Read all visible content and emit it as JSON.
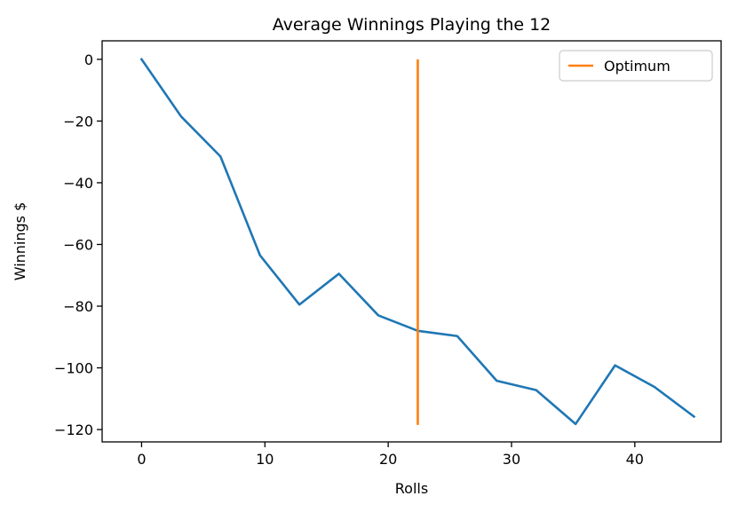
{
  "chart_data": {
    "type": "line",
    "title": "Average Winnings Playing the 12",
    "xlabel": "Rolls",
    "ylabel": "Winnings $",
    "xlim": [
      -3.2,
      47.0
    ],
    "ylim": [
      -124.0,
      6.0
    ],
    "xticks": [
      0,
      10,
      20,
      30,
      40
    ],
    "yticks": [
      0,
      -20,
      -40,
      -60,
      -80,
      -100,
      -120
    ],
    "xtick_labels": [
      "0",
      "10",
      "20",
      "30",
      "40"
    ],
    "ytick_labels": [
      "0",
      "−20",
      "−40",
      "−60",
      "−80",
      "−100",
      "−120"
    ],
    "grid": false,
    "legend_position": "top-right",
    "series": [
      {
        "color": "#1f77b4",
        "x": [
          0,
          3.2,
          6.4,
          9.6,
          12.8,
          16.0,
          19.2,
          22.4,
          25.6,
          28.8,
          32.0,
          35.2,
          38.4,
          41.6,
          44.8
        ],
        "values": [
          0,
          -18.5,
          -31.5,
          -63.5,
          -79.5,
          -69.5,
          -83.0,
          -88.0,
          -89.7,
          -104.2,
          -107.2,
          -118.2,
          -99.2,
          -106.2,
          -115.8
        ]
      }
    ],
    "vertical_lines": [
      {
        "name": "Optimum",
        "color": "#ff7f0e",
        "x": 22.4,
        "ymin": -118.5,
        "ymax": 0
      }
    ],
    "legend": [
      {
        "label": "Optimum",
        "color": "#ff7f0e"
      }
    ]
  }
}
